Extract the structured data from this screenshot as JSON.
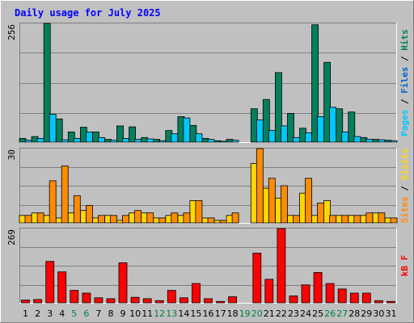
{
  "chart_data": {
    "type": "bar",
    "title": "Daily usage for July 2025",
    "categories": [
      "1",
      "2",
      "3",
      "4",
      "5",
      "6",
      "7",
      "8",
      "9",
      "10",
      "11",
      "12",
      "13",
      "14",
      "15",
      "16",
      "17",
      "18",
      "19",
      "20",
      "21",
      "22",
      "23",
      "24",
      "25",
      "26",
      "27",
      "28",
      "29",
      "30",
      "31"
    ],
    "weekend_days": [
      "5",
      "6",
      "12",
      "13",
      "19",
      "20",
      "26",
      "27"
    ],
    "panels": [
      {
        "id": "hits",
        "ymax_label": "256",
        "ymax": 256,
        "series": [
          {
            "name": "Hits",
            "color": "#00805c",
            "values": [
              8,
              12,
              256,
              50,
              22,
              32,
              22,
              6,
              35,
              33,
              10,
              6,
              25,
              55,
              36,
              8,
              3,
              6,
              0,
              72,
              92,
              150,
              62,
              30,
              253,
              172,
              72,
              65,
              10,
              6,
              4
            ]
          },
          {
            "name": "Files",
            "color": "#00c8ff",
            "values": [
              4,
              8,
              60,
              5,
              8,
              22,
              10,
              4,
              8,
              6,
              7,
              3,
              18,
              52,
              18,
              6,
              2,
              4,
              0,
              48,
              25,
              35,
              10,
              20,
              55,
              75,
              22,
              12,
              6,
              5,
              3
            ]
          },
          {
            "name": "Pages",
            "color": "#00e0e0",
            "values": []
          }
        ],
        "side_label": [
          {
            "text": "Pages",
            "color": "#00c8ff"
          },
          {
            "text": " / ",
            "color": "#000000"
          },
          {
            "text": "Files",
            "color": "#0066cc"
          },
          {
            "text": " / ",
            "color": "#000000"
          },
          {
            "text": "Hits",
            "color": "#00805c"
          }
        ]
      },
      {
        "id": "visits",
        "ymax_label": "30",
        "ymax": 30,
        "series": [
          {
            "name": "Visits",
            "color": "#ffd700",
            "values": [
              3,
              4,
              3,
              2,
              4,
              5,
              2,
              3,
              1,
              4,
              4,
              2,
              3,
              3,
              9,
              2,
              1,
              3,
              0,
              24,
              14,
              10,
              3,
              12,
              3,
              9,
              3,
              3,
              3,
              4,
              2
            ]
          },
          {
            "name": "Sites",
            "color": "#ff8c00",
            "values": [
              3,
              4,
              17,
              23,
              11,
              7,
              3,
              3,
              3,
              5,
              4,
              2,
              4,
              4,
              9,
              2,
              1,
              4,
              0,
              30,
              18,
              15,
              3,
              18,
              8,
              3,
              3,
              3,
              4,
              4,
              2
            ]
          }
        ],
        "side_label": [
          {
            "text": "Sites",
            "color": "#ff8c00"
          },
          {
            "text": " / ",
            "color": "#000000"
          },
          {
            "text": "Visits",
            "color": "#ffd700"
          }
        ]
      },
      {
        "id": "kbytes",
        "ymax_label": "269",
        "ymax": 269,
        "series": [
          {
            "name": "kB F",
            "color": "#ff0000",
            "values": [
              10,
              12,
              150,
              112,
              45,
              35,
              18,
              15,
              145,
              20,
              15,
              8,
              45,
              18,
              70,
              15,
              5,
              22,
              0,
              180,
              85,
              269,
              25,
              65,
              110,
              70,
              50,
              35,
              35,
              8,
              5
            ]
          }
        ],
        "side_label": [
          {
            "text": "kB F",
            "color": "#ff0000"
          }
        ]
      }
    ],
    "legend": "right-side vertical",
    "grid": true
  },
  "colors": {
    "background": "#c0c0c0",
    "plot_background": "#c0c0c0",
    "title_text": "#0000ff",
    "weekend_label": "#008040",
    "weekday_label": "#000000"
  }
}
